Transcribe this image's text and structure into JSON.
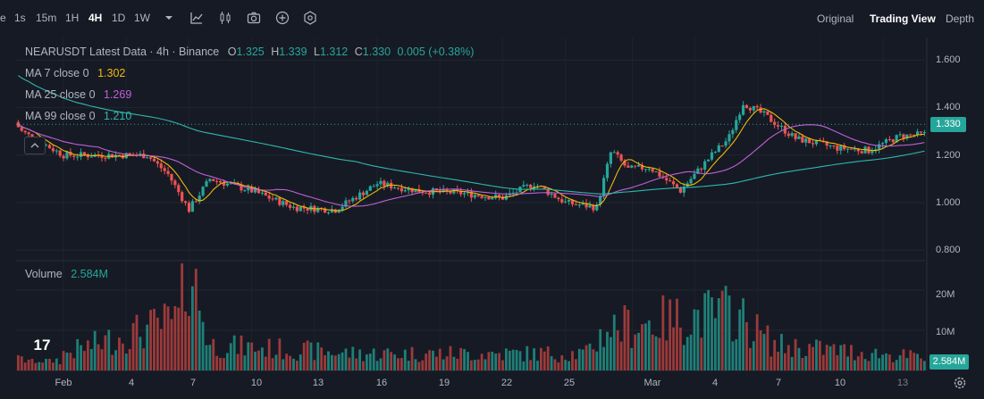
{
  "toolbar": {
    "intervals": [
      "e",
      "1s",
      "15m",
      "1H",
      "4H",
      "1D",
      "1W"
    ],
    "active_interval": "4H",
    "tools": [
      "chevron-down-icon",
      "indicators-icon",
      "candle-type-icon",
      "camera-icon",
      "add-icon",
      "settings-icon"
    ],
    "views": [
      "Original",
      "Trading View",
      "Depth"
    ],
    "active_view": "Trading View"
  },
  "legend": {
    "title": "NEARUSDT Latest Data · 4h · Binance",
    "o_label": "O",
    "o": "1.325",
    "h_label": "H",
    "h": "1.339",
    "l_label": "L",
    "l": "1.312",
    "c_label": "C",
    "c": "1.330",
    "change": "0.005 (+0.38%)",
    "ma7_label": "MA 7 close 0",
    "ma7": "1.302",
    "ma25_label": "MA 25 close 0",
    "ma25": "1.269",
    "ma99_label": "MA 99 close 0",
    "ma99": "1.210"
  },
  "volume": {
    "label": "Volume",
    "value": "2.584M",
    "tag": "2.584M"
  },
  "price_axis": {
    "ticks": [
      "1.600",
      "1.400",
      "1.200",
      "1.000",
      "0.800"
    ],
    "last_price": "1.330"
  },
  "volume_axis": {
    "ticks": [
      "20M",
      "10M"
    ]
  },
  "date_axis": [
    "Feb",
    "4",
    "7",
    "10",
    "13",
    "16",
    "19",
    "22",
    "25",
    "Mar",
    "4",
    "7",
    "10",
    "13"
  ],
  "colors": {
    "up": "#26a69a",
    "down": "#ef5350",
    "ma7": "#f0b90b",
    "ma25": "#c060d8",
    "ma99": "#2fb7ac",
    "background": "#161a25"
  },
  "chart_data": {
    "type": "candlestick",
    "title": "NEARUSDT Latest Data · 4h · Binance",
    "ylim": [
      0.75,
      1.7
    ],
    "anchors": [
      {
        "day": -3,
        "close": 1.42
      },
      {
        "day": -2,
        "close": 1.3
      },
      {
        "day": 0,
        "close": 1.2
      },
      {
        "day": 3,
        "close": 1.2
      },
      {
        "day": 4,
        "close": 1.2
      },
      {
        "day": 5,
        "close": 1.12
      },
      {
        "day": 6,
        "close": 0.97
      },
      {
        "day": 7,
        "close": 1.1
      },
      {
        "day": 9,
        "close": 1.05
      },
      {
        "day": 11,
        "close": 0.98
      },
      {
        "day": 13,
        "close": 0.97
      },
      {
        "day": 15,
        "close": 1.08
      },
      {
        "day": 17,
        "close": 1.05
      },
      {
        "day": 19,
        "close": 1.04
      },
      {
        "day": 21,
        "close": 1.02
      },
      {
        "day": 22.5,
        "close": 1.08
      },
      {
        "day": 24,
        "close": 1.0
      },
      {
        "day": 25.5,
        "close": 0.98
      },
      {
        "day": 26.2,
        "close": 1.22
      },
      {
        "day": 27,
        "close": 1.14
      },
      {
        "day": 28,
        "close": 1.15
      },
      {
        "day": 29.5,
        "close": 1.05
      },
      {
        "day": 31,
        "close": 1.2
      },
      {
        "day": 31.8,
        "close": 1.27
      },
      {
        "day": 32.5,
        "close": 1.42
      },
      {
        "day": 33.5,
        "close": 1.37
      },
      {
        "day": 35,
        "close": 1.27
      },
      {
        "day": 37,
        "close": 1.23
      },
      {
        "day": 38.5,
        "close": 1.22
      },
      {
        "day": 40,
        "close": 1.28
      },
      {
        "day": 41.5,
        "close": 1.29
      },
      {
        "day": 42.3,
        "close": 1.33
      }
    ],
    "volume_anchors": [
      {
        "day": 0,
        "vol": 4
      },
      {
        "day": 5.5,
        "vol": 12
      },
      {
        "day": 6,
        "vol": 26
      },
      {
        "day": 7,
        "vol": 6
      },
      {
        "day": 14,
        "vol": 4
      },
      {
        "day": 25,
        "vol": 4
      },
      {
        "day": 26,
        "vol": 10
      },
      {
        "day": 32,
        "vol": 14
      },
      {
        "day": 34,
        "vol": 6
      },
      {
        "day": 42.3,
        "vol": 2.584
      }
    ],
    "ma_periods": [
      7,
      25,
      99
    ],
    "last": {
      "open": 1.325,
      "high": 1.339,
      "low": 1.312,
      "close": 1.33
    }
  }
}
